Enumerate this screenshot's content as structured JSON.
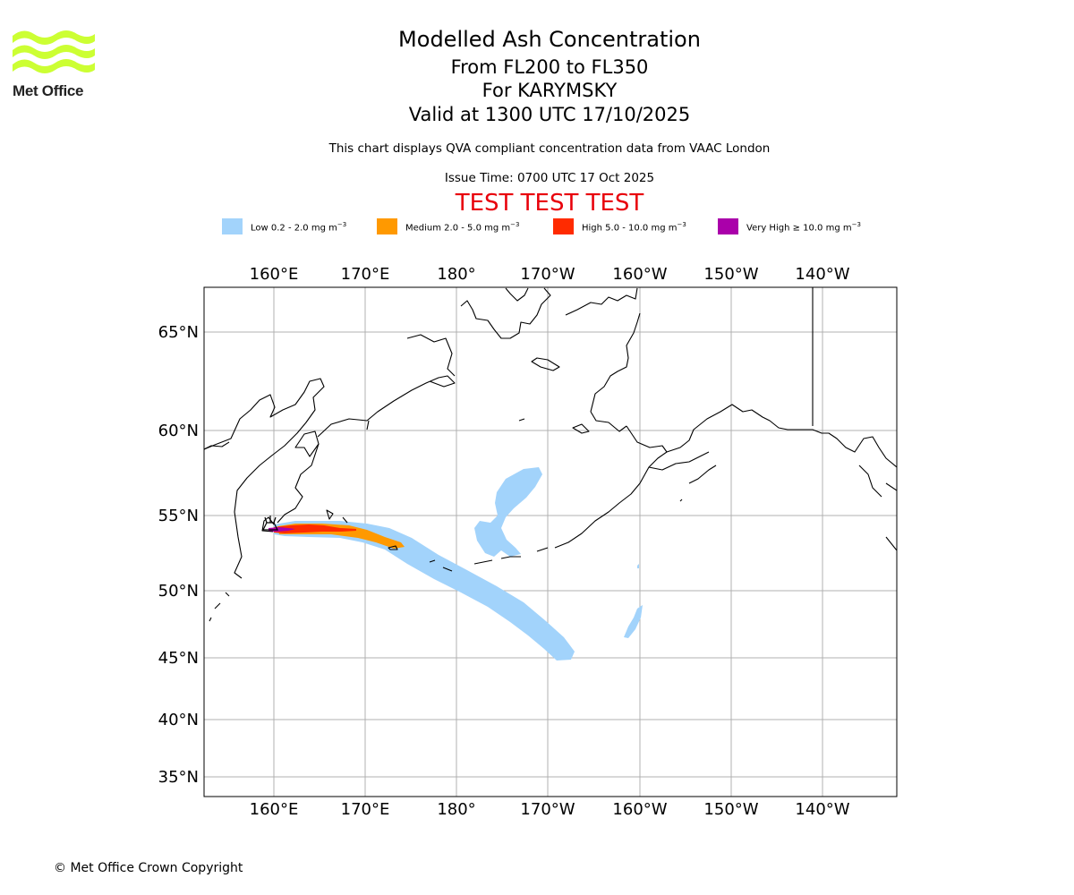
{
  "branding": {
    "logo_text": "Met Office",
    "logo_color": "#ccff33"
  },
  "header": {
    "title": "Modelled Ash Concentration",
    "levels": "From FL200 to FL350",
    "volcano": "For KARYMSKY",
    "valid": "Valid at 1300 UTC 17/10/2025",
    "description": "This chart displays QVA compliant concentration data from VAAC London",
    "issue_time": "Issue Time: 0700 UTC 17 Oct 2025",
    "test_banner": "TEST TEST TEST"
  },
  "legend": [
    {
      "label": "Low 0.2 - 2.0 mg m",
      "color": "#a2d3fb"
    },
    {
      "label": "Medium 2.0 - 5.0 mg m",
      "color": "#ff9900"
    },
    {
      "label": "High 5.0 - 10.0 mg m",
      "color": "#ff2b00"
    },
    {
      "label": "Very High ≥ 10.0 mg m",
      "color": "#aa00aa"
    }
  ],
  "legend_unit_exponent": "−3",
  "map": {
    "lon_labels": [
      "160°E",
      "170°E",
      "180°",
      "170°W",
      "160°W",
      "150°W",
      "140°W"
    ],
    "lat_labels": [
      "65°N",
      "60°N",
      "55°N",
      "50°N",
      "45°N",
      "40°N",
      "35°N"
    ],
    "volcano_name": "KARYMSKY"
  },
  "footer": {
    "copyright": "© Met Office Crown Copyright"
  }
}
